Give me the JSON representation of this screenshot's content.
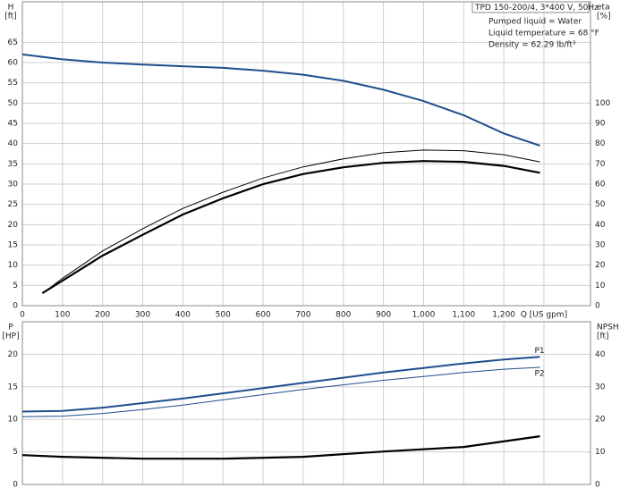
{
  "chart_data": [
    {
      "type": "line",
      "title": "TPD 150-200/4, 3*400 V, 50Hz",
      "annotations": [
        "Pumped liquid = Water",
        "Liquid temperature = 68 °F",
        "Density = 62.29 lb/ft³"
      ],
      "y_label": [
        "H",
        "[ft]"
      ],
      "y2_label": [
        "eta",
        "[%]"
      ],
      "xlim": [
        0,
        1416
      ],
      "ylim": [
        0,
        75
      ],
      "y2lim": [
        0,
        150
      ],
      "xticks": [
        0,
        100,
        200,
        300,
        400,
        500,
        600,
        700,
        800,
        900,
        {
          "value": 1000,
          "label": "1,000"
        },
        {
          "value": 1100,
          "label": "1,100"
        },
        {
          "value": 1200,
          "label": "1,200"
        },
        {
          "value": 1300,
          "label": "Q [US gpm]"
        }
      ],
      "yticks": [
        0,
        5,
        10,
        15,
        20,
        25,
        30,
        35,
        40,
        45,
        50,
        55,
        60,
        65
      ],
      "y2ticks": [
        0,
        10,
        20,
        30,
        40,
        50,
        60,
        70,
        80,
        90,
        100
      ],
      "grid": true,
      "series": [
        {
          "color": "#1f4e8c",
          "linewidth": 2,
          "x": [
            0,
            100,
            200,
            300,
            400,
            500,
            600,
            700,
            800,
            900,
            1000,
            1100,
            1200,
            1290
          ],
          "values": [
            62,
            60.8,
            60,
            59.5,
            59.1,
            58.7,
            58,
            57,
            55.5,
            53.3,
            50.5,
            47,
            42.5,
            39.5
          ]
        },
        {
          "color": "#000000",
          "linewidth": 1,
          "axis": "y2",
          "x": [
            50,
            100,
            200,
            300,
            400,
            500,
            600,
            700,
            800,
            900,
            1000,
            1100,
            1200,
            1290
          ],
          "values": [
            6,
            13.5,
            27,
            38,
            48,
            56,
            63,
            68.5,
            72.5,
            75.5,
            76.8,
            76.5,
            74.5,
            71
          ]
        },
        {
          "color": "#000000",
          "linewidth": 2.2,
          "axis": "y2",
          "x": [
            50,
            100,
            200,
            300,
            400,
            500,
            600,
            700,
            800,
            900,
            1000,
            1100,
            1200,
            1290
          ],
          "values": [
            6.2,
            12.3,
            24.7,
            35,
            45,
            53,
            60,
            65,
            68.3,
            70.5,
            71.4,
            71,
            69,
            65.6
          ]
        }
      ]
    },
    {
      "type": "line",
      "y_label": [
        "P",
        "[HP]"
      ],
      "y2_label": [
        "NPSH",
        "[ft]"
      ],
      "xlim": [
        0,
        1416
      ],
      "ylim": [
        0,
        25
      ],
      "y2lim": [
        0,
        50
      ],
      "yticks": [
        0,
        5,
        10,
        15,
        20
      ],
      "y2ticks": [
        0,
        10,
        20,
        30,
        40
      ],
      "grid": true,
      "series": [
        {
          "name": "P1",
          "color": "#1f4e8c",
          "linewidth": 2,
          "x": [
            0,
            100,
            200,
            300,
            400,
            500,
            600,
            700,
            800,
            900,
            1000,
            1100,
            1200,
            1290
          ],
          "values": [
            11.2,
            11.3,
            11.8,
            12.5,
            13.2,
            14,
            14.8,
            15.6,
            16.4,
            17.2,
            17.9,
            18.6,
            19.2,
            19.6
          ]
        },
        {
          "name": "P2",
          "color": "#1f4e8c",
          "linewidth": 1,
          "x": [
            0,
            100,
            200,
            300,
            400,
            500,
            600,
            700,
            800,
            900,
            1000,
            1100,
            1200,
            1290
          ],
          "values": [
            10.4,
            10.5,
            10.9,
            11.5,
            12.2,
            13,
            13.8,
            14.6,
            15.3,
            16,
            16.6,
            17.2,
            17.7,
            18
          ]
        },
        {
          "color": "#000000",
          "linewidth": 2.2,
          "axis": "y2",
          "x": [
            0,
            100,
            300,
            500,
            700,
            900,
            1100,
            1290
          ],
          "values": [
            9,
            8.5,
            7.9,
            7.9,
            8.5,
            10.1,
            11.5,
            14.8
          ]
        }
      ]
    }
  ]
}
